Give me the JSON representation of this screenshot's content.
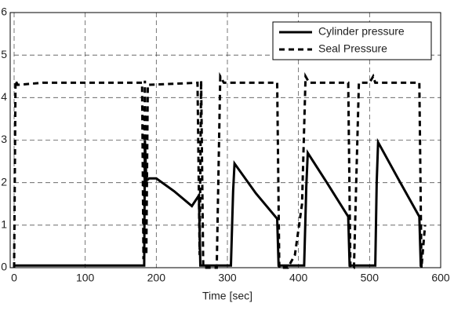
{
  "chart_data": {
    "type": "line",
    "x_label": "Time [sec]",
    "xlim": [
      0,
      600
    ],
    "xticks": [
      0,
      100,
      200,
      300,
      400,
      500,
      600
    ],
    "ylim": [
      0,
      6
    ],
    "yticks": [
      0,
      1,
      2,
      3,
      4,
      5,
      6
    ],
    "grid": true,
    "legend": "upper right",
    "series": [
      {
        "name": "Cylinder pressure",
        "color": "#000000",
        "line_style": "solid",
        "x": [
          0,
          183,
          184,
          186,
          190,
          200,
          225,
          250,
          260,
          262,
          264,
          305,
          308,
          310,
          340,
          370,
          372,
          373,
          408,
          411,
          413,
          440,
          470,
          472,
          473,
          508,
          510,
          512,
          540,
          570,
          572,
          573
        ],
        "values": [
          0.05,
          0.05,
          3.0,
          2.05,
          2.1,
          2.1,
          1.8,
          1.45,
          1.7,
          0.05,
          0.05,
          0.05,
          1.8,
          2.45,
          1.75,
          1.15,
          0.05,
          0.05,
          0.05,
          1.9,
          2.7,
          2.0,
          1.2,
          0.05,
          0.05,
          0.05,
          2.0,
          2.95,
          2.1,
          1.2,
          0.05,
          0.05
        ]
      },
      {
        "name": "Seal Pressure",
        "color": "#000000",
        "line_style": "dashed",
        "x": [
          0,
          2,
          5,
          40,
          180,
          182,
          184,
          186,
          188,
          258,
          261,
          263,
          266,
          285,
          290,
          295,
          370,
          373,
          385,
          395,
          405,
          410,
          415,
          470,
          473,
          478,
          485,
          500,
          505,
          508,
          570,
          573,
          578
        ],
        "values": [
          0.0,
          4.4,
          4.3,
          4.35,
          4.35,
          0.2,
          4.4,
          0.3,
          4.3,
          4.35,
          0.3,
          4.4,
          0.0,
          0.0,
          4.5,
          4.35,
          4.35,
          0.0,
          0.0,
          0.3,
          1.5,
          4.5,
          4.35,
          4.35,
          0.0,
          0.0,
          4.35,
          4.35,
          4.5,
          4.35,
          4.35,
          0.0,
          1.0
        ]
      }
    ]
  }
}
